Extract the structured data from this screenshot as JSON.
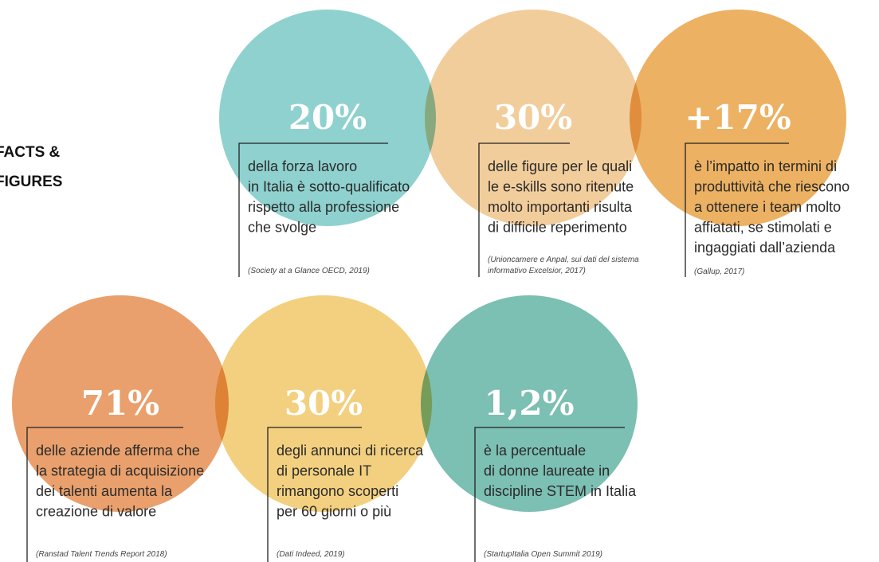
{
  "heading": [
    "FACTS &",
    "FIGURES"
  ],
  "facts": [
    {
      "stat": "20%",
      "description": [
        "della forza lavoro",
        "in Italia è sotto-qualificato",
        "rispetto alla professione",
        "che svolge"
      ],
      "source": [
        "(Society at a Glance OECD, 2019)"
      ]
    },
    {
      "stat": "30%",
      "description": [
        "delle figure per le quali",
        "le e-skills sono ritenute",
        "molto importanti risulta",
        "di difficile reperimento"
      ],
      "source": [
        "(Unioncamere e Anpal, sui dati del sistema",
        "informativo Excelsior, 2017)"
      ]
    },
    {
      "stat": "+17%",
      "description": [
        "è l’impatto in termini di",
        "produttività che riescono",
        "a ottenere i team molto",
        "affiatati, se stimolati e",
        "ingaggiati dall’azienda"
      ],
      "source": [
        "(Gallup, 2017)"
      ]
    },
    {
      "stat": "71%",
      "description": [
        "delle aziende afferma che",
        "la strategia di acquisizione",
        "dei talenti aumenta la",
        "creazione di valore"
      ],
      "source": [
        "(Ranstad Talent Trends Report 2018)"
      ]
    },
    {
      "stat": "30%",
      "description": [
        "degli annunci di ricerca",
        "di personale IT",
        "rimangono scoperti",
        "per 60 giorni o più"
      ],
      "source": [
        "(Dati Indeed, 2019)"
      ]
    },
    {
      "stat": "1,2%",
      "description": [
        "è la percentuale",
        "di donne laureate in",
        "discipline STEM in Italia"
      ],
      "source": [
        "(StartupItalia Open Summit 2019)"
      ]
    }
  ]
}
